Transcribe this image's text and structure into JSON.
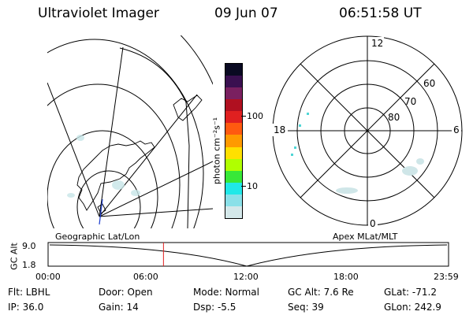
{
  "header": {
    "title": "Ultraviolet Imager",
    "date": "09 Jun 07",
    "time": "06:51:58 UT"
  },
  "colorbar": {
    "unit_label": "photon cm⁻²s⁻¹",
    "ticks": [
      "100",
      "10"
    ],
    "colors": [
      "#0a0a22",
      "#3a1050",
      "#7a2060",
      "#b01020",
      "#e02020",
      "#ff5a10",
      "#ff9a00",
      "#ffe000",
      "#b0ff00",
      "#38e838",
      "#20e8e8",
      "#8ae0e8",
      "#d4e8ea"
    ]
  },
  "polar": {
    "mlt_labels": {
      "top": "12",
      "left": "18",
      "right": "6",
      "bottom": "0"
    },
    "lat_labels": [
      "60",
      "70",
      "80"
    ]
  },
  "timeline": {
    "left_caption": "Geographic Lat/Lon",
    "right_caption": "Apex MLat/MLT",
    "y_label": "GC Alt",
    "y_ticks": [
      "9.0",
      "1.8"
    ],
    "x_ticks": [
      "00:00",
      "06:00",
      "12:00",
      "18:00",
      "23:59"
    ],
    "current_time_hours": 6.87
  },
  "info": {
    "flt": "Flt: LBHL",
    "ip": "IP: 36.0",
    "door": "Door: Open",
    "gain": "Gain: 14",
    "mode": "Mode: Normal",
    "dsp": "Dsp:   -5.5",
    "gcalt": "GC Alt: 7.6 Re",
    "seq": "Seq: 39",
    "glat": "GLat: -71.2",
    "glon": "GLon: 242.9"
  }
}
